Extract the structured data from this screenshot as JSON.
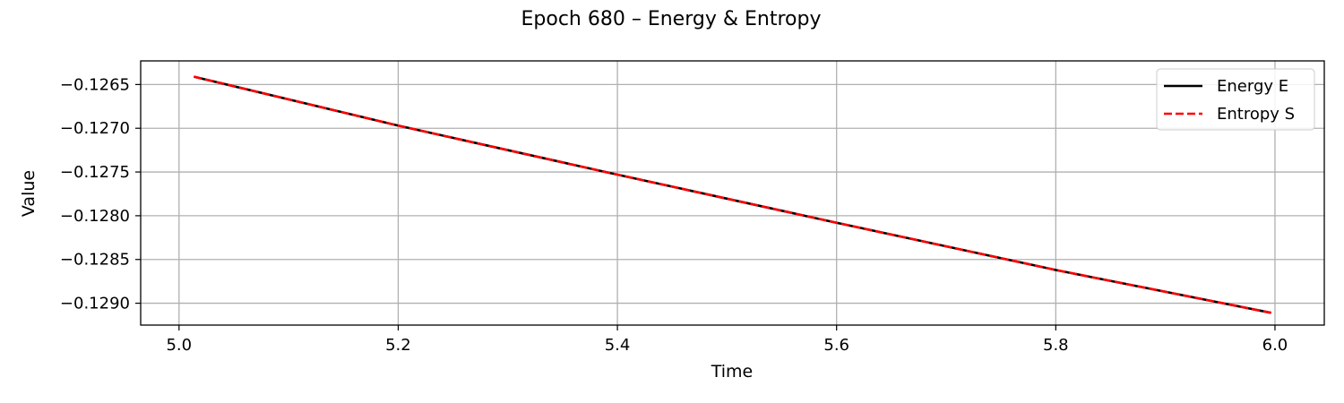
{
  "chart_data": {
    "type": "line",
    "title": "Epoch 680 – Energy & Entropy",
    "xlabel": "Time",
    "ylabel": "Value",
    "xlim": [
      4.965,
      6.045
    ],
    "ylim": [
      -0.12925,
      -0.12623
    ],
    "grid": true,
    "legend_position": "top-right",
    "x_ticks": [
      {
        "value": 5.0,
        "label": "5.0"
      },
      {
        "value": 5.2,
        "label": "5.2"
      },
      {
        "value": 5.4,
        "label": "5.4"
      },
      {
        "value": 5.6,
        "label": "5.6"
      },
      {
        "value": 5.8,
        "label": "5.8"
      },
      {
        "value": 6.0,
        "label": "6.0"
      }
    ],
    "y_ticks": [
      {
        "value": -0.1265,
        "label": "−0.1265"
      },
      {
        "value": -0.127,
        "label": "−0.1270"
      },
      {
        "value": -0.1275,
        "label": "−0.1275"
      },
      {
        "value": -0.128,
        "label": "−0.1280"
      },
      {
        "value": -0.1285,
        "label": "−0.1285"
      },
      {
        "value": -0.129,
        "label": "−0.1290"
      }
    ],
    "series": [
      {
        "name": "Energy E",
        "color": "#000000",
        "dash": "solid",
        "x": [
          5.0135,
          5.2,
          5.4,
          5.6,
          5.8,
          5.9965
        ],
        "y": [
          -0.12641,
          -0.12697,
          -0.12753,
          -0.12808,
          -0.12862,
          -0.12911
        ]
      },
      {
        "name": "Entropy S",
        "color": "#ff0000",
        "dash": "dashed",
        "x": [
          5.0135,
          5.2,
          5.4,
          5.6,
          5.8,
          5.9965
        ],
        "y": [
          -0.12641,
          -0.12697,
          -0.12753,
          -0.12808,
          -0.12862,
          -0.12911
        ]
      }
    ]
  }
}
